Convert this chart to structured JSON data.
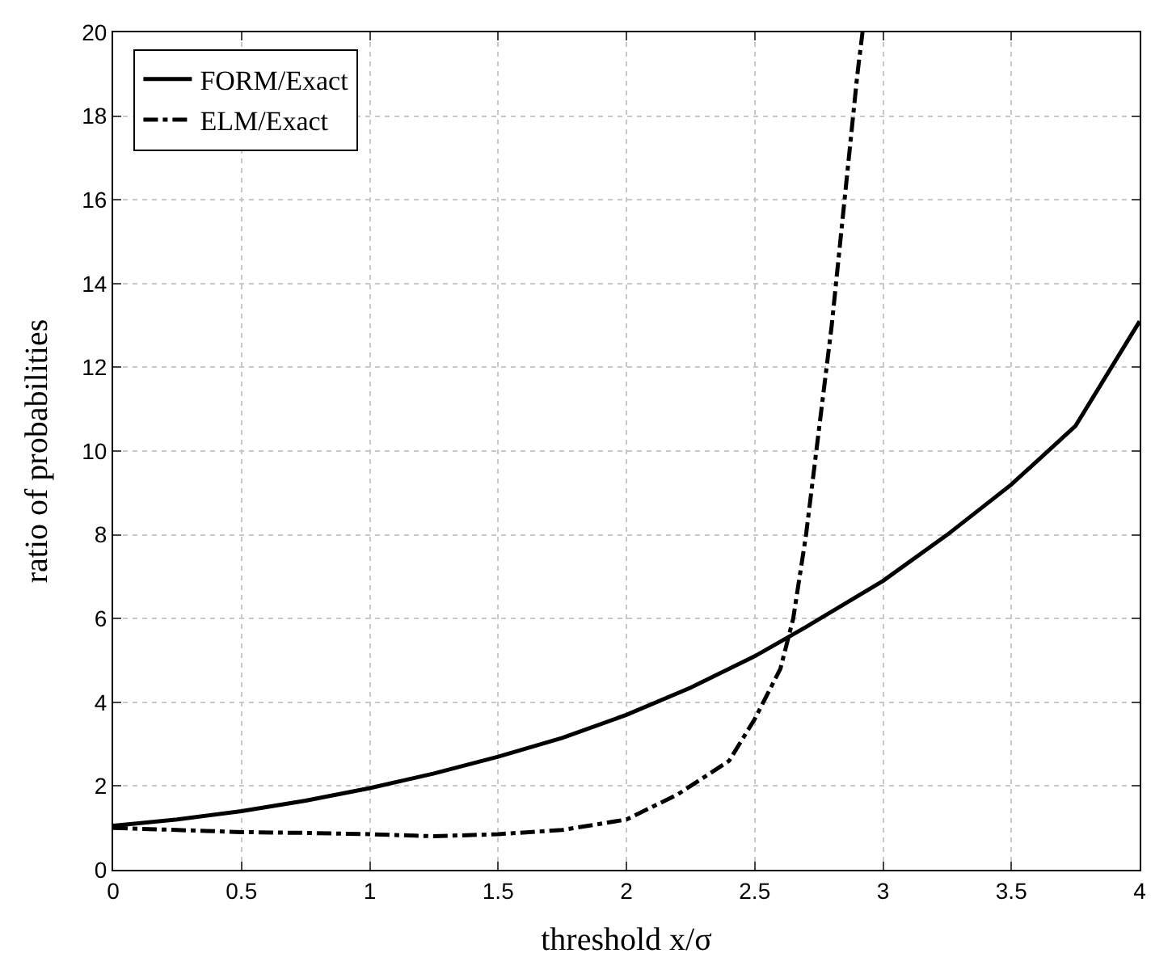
{
  "chart_data": {
    "type": "line",
    "xlabel": "threshold x/σ",
    "ylabel": "ratio of probabilities",
    "xlim": [
      0,
      4
    ],
    "xticks": [
      0,
      0.5,
      1,
      1.5,
      2,
      2.5,
      3,
      3.5,
      4
    ],
    "ylim": [
      0,
      20
    ],
    "yticks": [
      0,
      2,
      4,
      6,
      8,
      10,
      12,
      14,
      16,
      18,
      20
    ],
    "grid": true,
    "legend": "top left",
    "marker": "none",
    "series": [
      {
        "name": "FORM/Exact",
        "color": "#000000",
        "line_style": "solid",
        "x": [
          0,
          0.25,
          0.5,
          0.75,
          1,
          1.25,
          1.5,
          1.75,
          2,
          2.25,
          2.5,
          2.7,
          3,
          3.25,
          3.5,
          3.75,
          4
        ],
        "values": [
          1.05,
          1.2,
          1.4,
          1.65,
          1.95,
          2.3,
          2.7,
          3.15,
          3.7,
          4.35,
          5.1,
          5.8,
          6.9,
          8.0,
          9.2,
          10.6,
          13.1
        ]
      },
      {
        "name": "ELM/Exact",
        "color": "#000000",
        "line_style": "dashdot",
        "x": [
          0,
          0.25,
          0.5,
          0.75,
          1,
          1.25,
          1.5,
          1.75,
          2,
          2.2,
          2.4,
          2.5,
          2.6,
          2.65,
          2.7,
          2.75,
          2.8,
          2.85,
          2.9,
          2.92
        ],
        "values": [
          1.0,
          0.95,
          0.9,
          0.88,
          0.85,
          0.8,
          0.85,
          0.95,
          1.2,
          1.8,
          2.6,
          3.6,
          4.8,
          6.0,
          8.0,
          10.5,
          13.0,
          16.0,
          19.0,
          20.0
        ]
      }
    ]
  }
}
